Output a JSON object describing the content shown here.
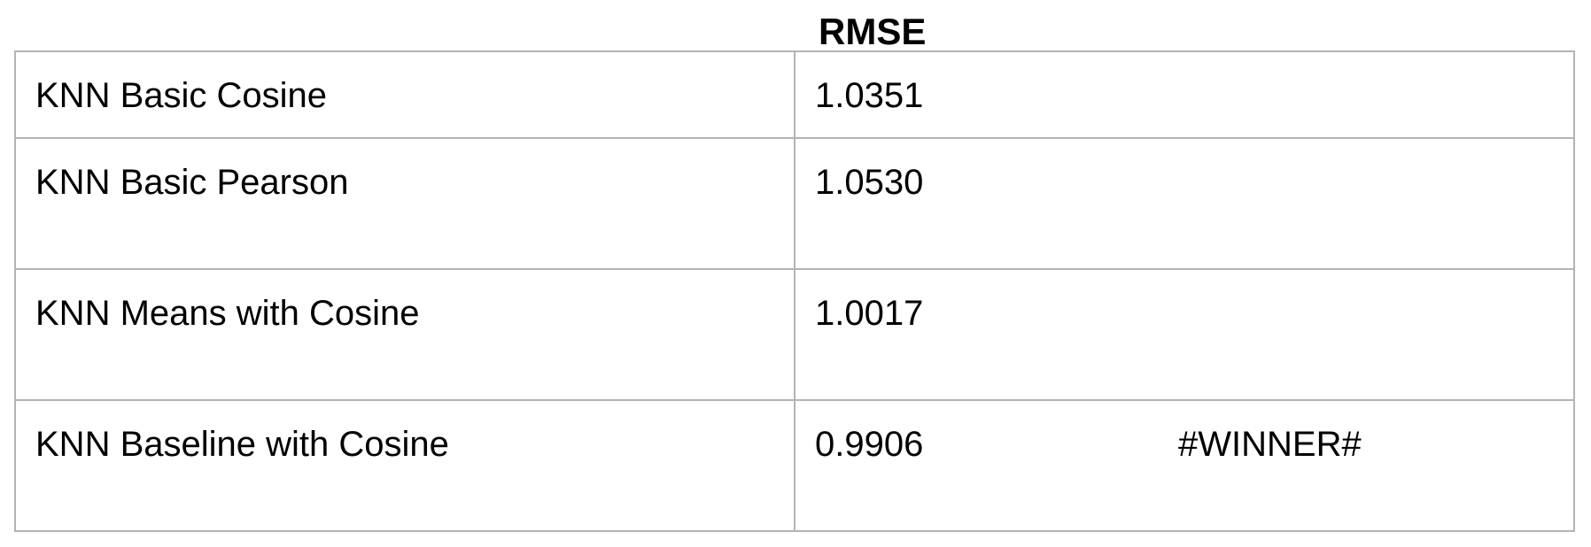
{
  "header": {
    "title": "RMSE"
  },
  "rows": [
    {
      "method": "KNN Basic Cosine",
      "rmse": "1.0351",
      "note": ""
    },
    {
      "method": "KNN Basic Pearson",
      "rmse": "1.0530",
      "note": ""
    },
    {
      "method": "KNN Means with Cosine",
      "rmse": "1.0017",
      "note": ""
    },
    {
      "method": "KNN Baseline with Cosine",
      "rmse": "0.9906",
      "note": "#WINNER#"
    }
  ]
}
